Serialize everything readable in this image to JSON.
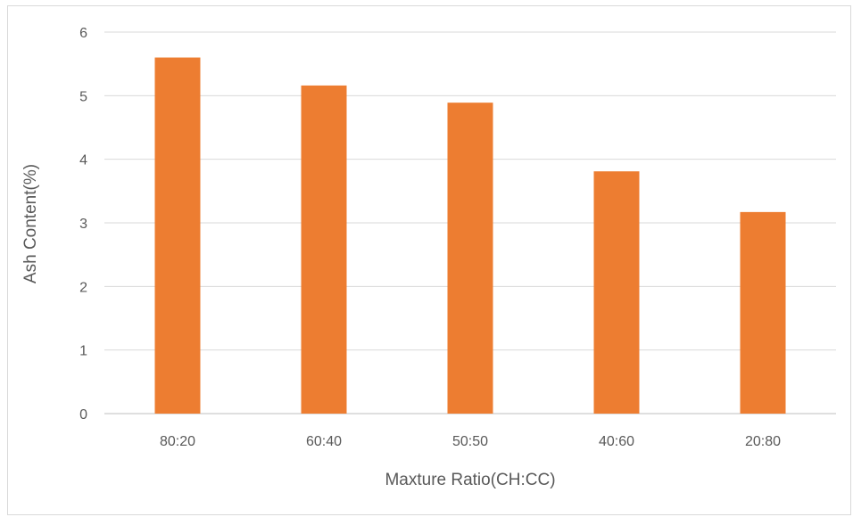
{
  "chart_data": {
    "type": "bar",
    "title": "",
    "xlabel": "Maxture Ratio(CH:CC)",
    "ylabel": "Ash Content(%)",
    "categories": [
      "80:20",
      "60:40",
      "50:50",
      "40:60",
      "20:80"
    ],
    "values": [
      5.6,
      5.16,
      4.89,
      3.81,
      3.17
    ],
    "ylim": [
      0,
      6
    ],
    "yticks": [
      "0",
      "1",
      "2",
      "3",
      "4",
      "5",
      "6"
    ],
    "grid": true,
    "legend": "none",
    "colors": {
      "bar": "#ED7D31"
    }
  }
}
